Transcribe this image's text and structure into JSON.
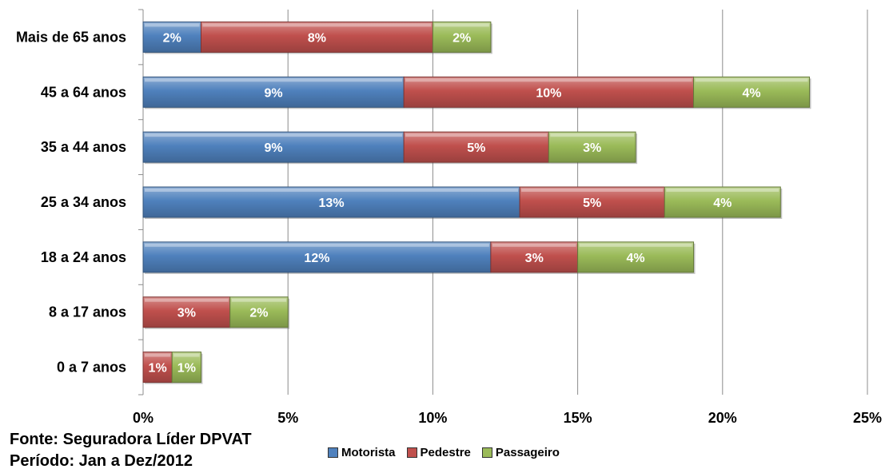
{
  "chart_data": {
    "type": "bar",
    "orientation": "horizontal",
    "stacked": true,
    "categories": [
      "Mais de 65 anos",
      "45 a 64 anos",
      "35 a 44 anos",
      "25 a 34 anos",
      "18 a 24 anos",
      "8 a 17 anos",
      "0 a 7 anos"
    ],
    "series": [
      {
        "name": "Motorista",
        "color": "#4f81bd",
        "values": [
          2,
          9,
          9,
          13,
          12,
          0,
          0
        ],
        "labels": [
          "2%",
          "9%",
          "9%",
          "13%",
          "12%",
          "",
          ""
        ]
      },
      {
        "name": "Pedestre",
        "color": "#c0504d",
        "values": [
          8,
          10,
          5,
          5,
          3,
          3,
          1
        ],
        "labels": [
          "8%",
          "10%",
          "5%",
          "5%",
          "3%",
          "3%",
          "1%"
        ]
      },
      {
        "name": "Passageiro",
        "color": "#9bbb59",
        "values": [
          2,
          4,
          3,
          4,
          4,
          2,
          1
        ],
        "labels": [
          "2%",
          "4%",
          "3%",
          "4%",
          "4%",
          "2%",
          "1%"
        ]
      }
    ],
    "xlim": [
      0,
      25
    ],
    "x_ticks": [
      "0%",
      "5%",
      "10%",
      "15%",
      "20%",
      "25%"
    ],
    "grid": true,
    "legend_position": "bottom"
  },
  "source": {
    "line1": "Fonte: Seguradora Líder DPVAT",
    "line2": "Período: Jan a Dez/2012"
  }
}
